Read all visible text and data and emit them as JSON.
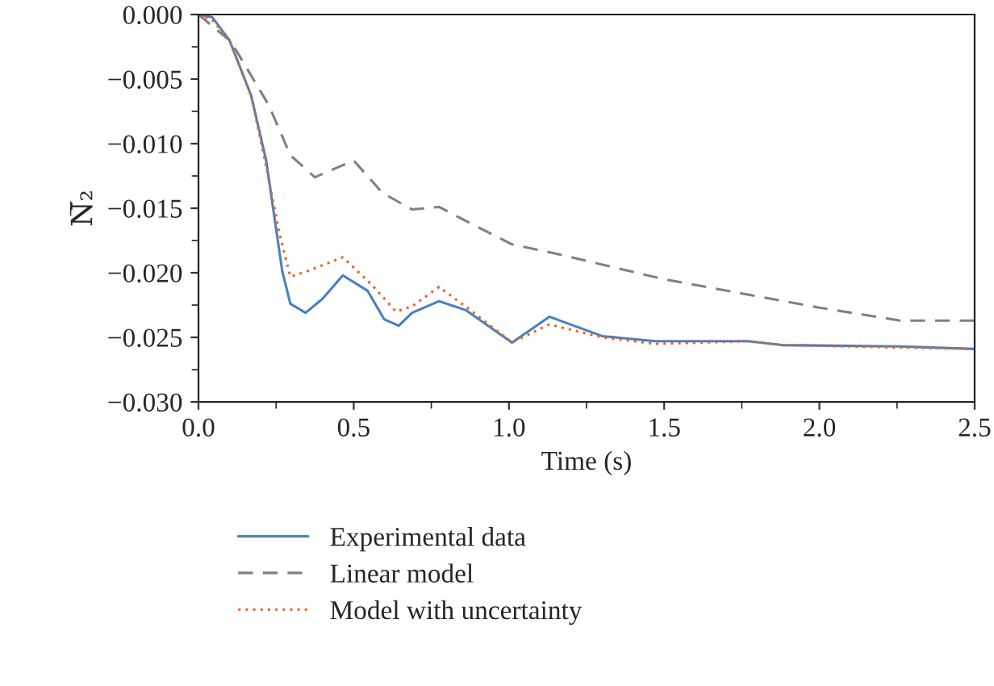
{
  "chart_data": {
    "type": "line",
    "xlabel": "Time (s)",
    "ylabel": "N̅₂",
    "xlim": [
      0,
      2.5
    ],
    "xticks": [
      {
        "value": 0,
        "label": "0.0"
      },
      {
        "value": 0.5,
        "label": "0.5"
      },
      {
        "value": 1.0,
        "label": "1.0"
      },
      {
        "value": 1.5,
        "label": "1.5"
      },
      {
        "value": 2.0,
        "label": "2.0"
      },
      {
        "value": 2.5,
        "label": "2.5"
      }
    ],
    "ylim": [
      -0.03,
      0
    ],
    "yticks": [
      {
        "value": -0.03,
        "label": "−0.030"
      },
      {
        "value": -0.025,
        "label": "−0.025"
      },
      {
        "value": -0.02,
        "label": "−0.020"
      },
      {
        "value": -0.015,
        "label": "−0.015"
      },
      {
        "value": -0.01,
        "label": "−0.010"
      },
      {
        "value": -0.005,
        "label": "−0.005"
      },
      {
        "value": 0,
        "label": "0.000"
      }
    ],
    "grid": false,
    "legend": "bottom",
    "series": [
      {
        "name": "Experimental data",
        "color": "#4a7fc1",
        "line_style": "solid",
        "x": [
          0,
          0.044,
          0.1,
          0.17,
          0.218,
          0.27,
          0.296,
          0.345,
          0.4,
          0.465,
          0.545,
          0.598,
          0.645,
          0.688,
          0.775,
          0.862,
          1.01,
          1.13,
          1.3,
          1.47,
          1.77,
          1.88,
          2.26,
          2.5
        ],
        "values": [
          0,
          -0.0002,
          -0.002,
          -0.0063,
          -0.0113,
          -0.0199,
          -0.0224,
          -0.0231,
          -0.022,
          -0.0202,
          -0.0214,
          -0.0236,
          -0.0241,
          -0.0231,
          -0.0222,
          -0.0229,
          -0.0254,
          -0.0234,
          -0.0249,
          -0.0253,
          -0.0253,
          -0.0256,
          -0.0257,
          -0.0259
        ]
      },
      {
        "name": "Linear model",
        "color": "#808080",
        "line_style": "dashed",
        "x": [
          0,
          0.1,
          0.122,
          0.226,
          0.296,
          0.375,
          0.5,
          0.592,
          0.688,
          0.775,
          0.871,
          1.01,
          1.13,
          1.5,
          2.0,
          2.26,
          2.5
        ],
        "values": [
          0,
          -0.002,
          -0.0028,
          -0.007,
          -0.0109,
          -0.0126,
          -0.0113,
          -0.0138,
          -0.0151,
          -0.0149,
          -0.0161,
          -0.0178,
          -0.0184,
          -0.0205,
          -0.0227,
          -0.0237,
          -0.0237
        ]
      },
      {
        "name": "Model with uncertainty",
        "color": "#f06020",
        "line_style": "dotted",
        "x": [
          0,
          0.044,
          0.1,
          0.17,
          0.22,
          0.261,
          0.296,
          0.348,
          0.465,
          0.557,
          0.636,
          0.688,
          0.775,
          0.871,
          1.01,
          1.13,
          1.3,
          1.47,
          1.77,
          1.88,
          2.5
        ],
        "values": [
          0,
          -0.0004,
          -0.002,
          -0.0063,
          -0.012,
          -0.017,
          -0.0203,
          -0.0199,
          -0.0188,
          -0.0209,
          -0.023,
          -0.0226,
          -0.0211,
          -0.0228,
          -0.0254,
          -0.024,
          -0.025,
          -0.0255,
          -0.0253,
          -0.0256,
          -0.0259
        ]
      }
    ]
  }
}
